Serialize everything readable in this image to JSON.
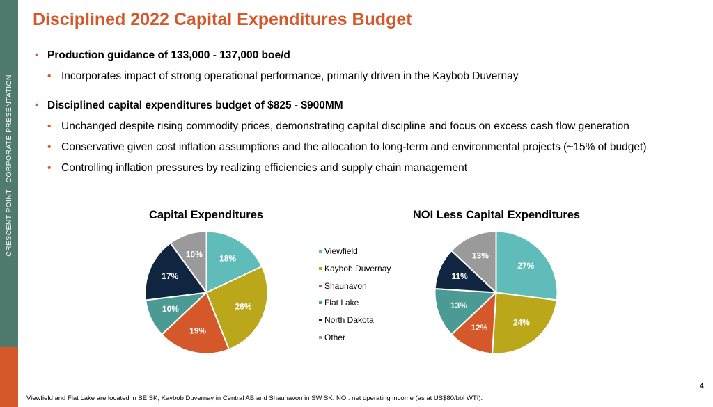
{
  "sidebar": {
    "text": "CRESCENT POINT   I   CORPORATE PRESENTATION",
    "color": "#4f7a6e",
    "accent": "#d4582a"
  },
  "title": "Disciplined 2022 Capital Expenditures Budget",
  "bullets": [
    {
      "text": "Production guidance of 133,000 - 137,000 boe/d",
      "sub": [
        "Incorporates impact of strong operational performance, primarily driven in the Kaybob Duvernay"
      ]
    },
    {
      "text": "Disciplined capital expenditures budget of $825 - $900MM",
      "sub": [
        "Unchanged despite rising commodity prices, demonstrating capital discipline and focus on excess cash flow generation",
        "Conservative given cost inflation assumptions and the allocation to long-term and environmental projects (~15% of budget)",
        "Controlling inflation pressures by realizing efficiencies and supply chain management"
      ]
    }
  ],
  "chart_data": [
    {
      "type": "pie",
      "title": "Capital Expenditures",
      "categories": [
        "Viewfield",
        "Kaybob Duvernay",
        "Shaunavon",
        "Flat Lake",
        "North Dakota",
        "Other"
      ],
      "values": [
        18,
        26,
        19,
        10,
        17,
        10
      ],
      "labels": [
        "18%",
        "26%",
        "19%",
        "10%",
        "17%",
        "10%"
      ],
      "colors": [
        "#5fbcb8",
        "#bba81a",
        "#d4582a",
        "#4c9a94",
        "#0f2540",
        "#9a9a9a"
      ],
      "label_colors": [
        "#ffffff",
        "#ffffff",
        "#ffffff",
        "#ffffff",
        "#ffffff",
        "#ffffff"
      ],
      "legend": "center, between charts"
    },
    {
      "type": "pie",
      "title": "NOI Less Capital Expenditures",
      "categories": [
        "Viewfield",
        "Kaybob Duvernay",
        "Shaunavon",
        "Flat Lake",
        "North Dakota",
        "Other"
      ],
      "values": [
        27,
        24,
        12,
        13,
        11,
        13
      ],
      "labels": [
        "27%",
        "24%",
        "12%",
        "13%",
        "11%",
        "13%"
      ],
      "colors": [
        "#5fbcb8",
        "#bba81a",
        "#d4582a",
        "#4c9a94",
        "#0f2540",
        "#9a9a9a"
      ],
      "label_colors": [
        "#ffffff",
        "#ffffff",
        "#ffffff",
        "#ffffff",
        "#ffffff",
        "#ffffff"
      ],
      "legend": "shared"
    }
  ],
  "footnote": "Viewfield and Flat Lake are located in SE SK, Kaybob Duvernay in Central AB and Shaunavon in SW SK. NOI: net operating income (as at US$80/bbl WTI).",
  "page_number": "4"
}
